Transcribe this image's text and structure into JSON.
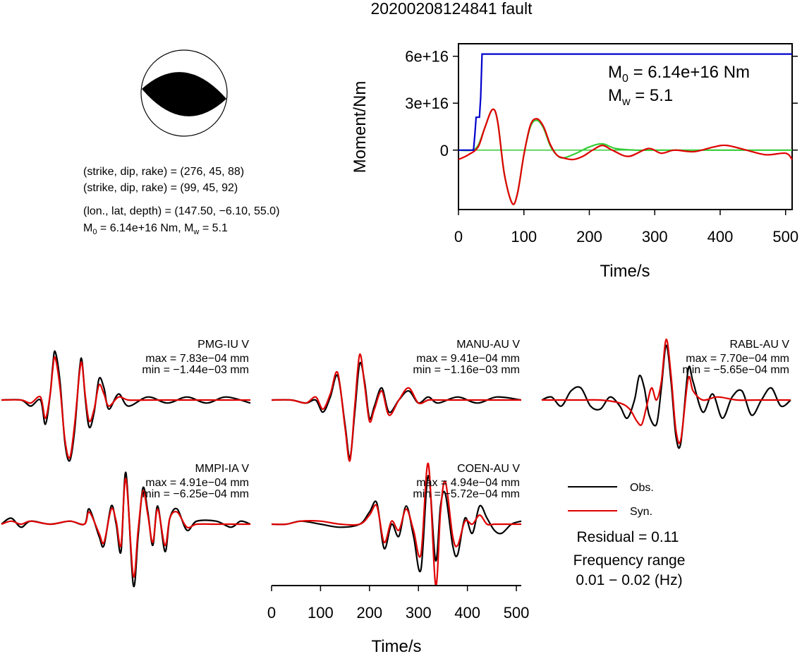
{
  "title": "20200208124841 fault",
  "mechanism": {
    "planes": [
      "(strike, dip, rake) = (276, 45, 88)",
      "(strike, dip, rake) = (99, 45, 92)"
    ],
    "location": "(lon., lat, depth) = (147.50, −6.10, 55.0)",
    "moment_line": {
      "m": "M",
      "sub": "0",
      "eq": " = 6.14e+16 Nm, M",
      "sub2": "w",
      "tail": " = 5.1"
    }
  },
  "moment_panel": {
    "ylabel": "Moment/Nm",
    "xlabel": "Time/s",
    "m0": {
      "m": "M",
      "sub": "0",
      "tail": " = 6.14e+16 Nm"
    },
    "mw": {
      "m": "M",
      "sub": "w",
      "tail": " = 5.1"
    },
    "yticks": [
      "0",
      "3e+16",
      "6e+16"
    ],
    "xticks": [
      "0",
      "100",
      "200",
      "300",
      "400",
      "500"
    ]
  },
  "waveforms": {
    "xlabel": "Time/s",
    "xticks": [
      "0",
      "100",
      "200",
      "300",
      "400",
      "500"
    ],
    "stations": [
      {
        "name": "PMG-IU V",
        "max": "max = 7.83e−04 mm",
        "min": "min = −1.44e−03 mm"
      },
      {
        "name": "MANU-AU V",
        "max": "max = 9.41e−04 mm",
        "min": "min = −1.16e−03 mm"
      },
      {
        "name": "RABL-AU V",
        "max": "max = 7.70e−04 mm",
        "min": "min = −5.65e−04 mm"
      },
      {
        "name": "MMPI-IA V",
        "max": "max = 4.91e−04 mm",
        "min": "min = −6.25e−04 mm"
      },
      {
        "name": "COEN-AU V",
        "max": "max = 4.94e−04 mm",
        "min": "min = −5.72e−04 mm"
      }
    ]
  },
  "legend": {
    "obs": "Obs.",
    "syn": "Syn."
  },
  "residual": "Residual = 0.11",
  "frequency": {
    "label": "Frequency range",
    "value": "0.01 − 0.02 (Hz)"
  },
  "colors": {
    "obs": "#000000",
    "syn": "#e00000",
    "stf_cumulative": "#0000cc",
    "stf_fit": "#33cc33"
  },
  "chart_data": [
    {
      "type": "line",
      "title": "",
      "xlabel": "Time/s",
      "ylabel": "Moment/Nm",
      "xlim": [
        0,
        510
      ],
      "ylim": [
        -3.8e+16,
        6.8e+16
      ],
      "series": [
        {
          "color": "#0000cc",
          "x": [
            0,
            23,
            25,
            27,
            32,
            34,
            36,
            510
          ],
          "y": [
            0,
            0,
            1e+16,
            2.1e+16,
            2.1e+16,
            3.4e+16,
            6.14e+16,
            6.14e+16
          ]
        },
        {
          "color": "#e00000",
          "x": [
            0,
            15,
            30,
            40,
            52,
            60,
            70,
            82,
            90,
            100,
            110,
            120,
            130,
            140,
            150,
            160,
            175,
            190,
            205,
            220,
            235,
            260,
            290,
            310,
            330,
            360,
            390,
            410,
            440,
            470,
            500,
            510
          ],
          "y": [
            -6000000000000000.0,
            -3000000000000000.0,
            2000000000000000.0,
            1.4e+16,
            2.6e+16,
            1.8e+16,
            -1.5e+16,
            -3.4e+16,
            -2.8e+16,
            -3000000000000000.0,
            1.6e+16,
            2e+16,
            1.5e+16,
            4000000000000000.0,
            -3000000000000000.0,
            -5000000000000000.0,
            -6000000000000000.0,
            -4000000000000000.0,
            0.0,
            3000000000000000.0,
            0.0,
            -4000000000000000.0,
            1000000000000000.0,
            -2000000000000000.0,
            0.0,
            -1000000000000000.0,
            2000000000000000.0,
            3000000000000000.0,
            0.0,
            -3000000000000000.0,
            -2000000000000000.0,
            -6000000000000000.0
          ]
        },
        {
          "color": "#33cc33",
          "x": [
            0,
            20,
            30,
            40,
            52,
            60,
            70,
            82,
            90,
            100,
            110,
            120,
            130,
            140,
            150,
            160,
            180,
            200,
            220,
            240,
            270,
            300,
            350,
            400,
            450,
            510
          ],
          "y": [
            0,
            0,
            3000000000000000.0,
            1.4e+16,
            2.6e+16,
            1.8e+16,
            -1.5e+16,
            -3.4e+16,
            -2.8e+16,
            -3000000000000000.0,
            1.5e+16,
            1.9e+16,
            1.4e+16,
            3000000000000000.0,
            -3000000000000000.0,
            -5000000000000000.0,
            -2000000000000000.0,
            2000000000000000.0,
            4000000000000000.0,
            1000000000000000.0,
            0,
            0,
            0,
            0,
            0,
            0
          ]
        }
      ]
    },
    {
      "type": "line",
      "title": "PMG-IU V",
      "xlim": [
        0,
        510
      ],
      "ylim": [
        -1,
        1
      ],
      "series": [
        {
          "color": "#000000",
          "x": [
            0,
            40,
            60,
            80,
            90,
            100,
            105,
            110,
            120,
            130,
            140,
            150,
            160,
            165,
            172,
            180,
            190,
            200,
            210,
            220,
            240,
            260,
            300,
            340,
            380,
            420,
            460,
            510
          ],
          "y": [
            0,
            0,
            -0.1,
            0.0,
            -0.4,
            0.1,
            0.55,
            0.8,
            0.3,
            -0.7,
            -1.0,
            -0.5,
            0.5,
            0.65,
            0.0,
            -0.45,
            -0.2,
            0.35,
            0.2,
            -0.15,
            0.1,
            -0.1,
            0.05,
            -0.05,
            0.05,
            -0.05,
            0.05,
            -0.05
          ]
        },
        {
          "color": "#e00000",
          "x": [
            0,
            40,
            60,
            80,
            90,
            100,
            105,
            110,
            120,
            130,
            140,
            150,
            160,
            165,
            172,
            180,
            190,
            200,
            210,
            220,
            240,
            260,
            300,
            340,
            380,
            420,
            460,
            510
          ],
          "y": [
            0,
            0,
            -0.05,
            0.05,
            -0.3,
            0.1,
            0.5,
            0.7,
            0.2,
            -0.65,
            -0.95,
            -0.4,
            0.45,
            0.6,
            0.05,
            -0.35,
            -0.15,
            0.25,
            0.1,
            -0.1,
            0.05,
            0.0,
            0.0,
            0.0,
            0.0,
            0.0,
            0.0,
            0.0
          ]
        }
      ]
    },
    {
      "type": "line",
      "title": "MANU-AU V",
      "xlim": [
        0,
        510
      ],
      "ylim": [
        -1,
        1
      ],
      "series": [
        {
          "color": "#000000",
          "x": [
            0,
            40,
            70,
            90,
            105,
            120,
            135,
            150,
            160,
            170,
            180,
            190,
            200,
            210,
            225,
            240,
            260,
            280,
            300,
            320,
            340,
            380,
            420,
            460,
            510
          ],
          "y": [
            0,
            0,
            -0.05,
            0.0,
            -0.2,
            0.05,
            0.4,
            -0.4,
            -0.95,
            -0.2,
            0.6,
            0.3,
            -0.3,
            -0.1,
            0.2,
            -0.2,
            0.0,
            0.15,
            -0.05,
            0.05,
            -0.05,
            0.05,
            -0.05,
            0.05,
            0.0
          ]
        },
        {
          "color": "#e00000",
          "x": [
            0,
            40,
            70,
            90,
            105,
            120,
            135,
            150,
            160,
            170,
            180,
            190,
            200,
            210,
            225,
            240,
            260,
            280,
            300,
            320,
            340,
            380,
            420,
            460,
            510
          ],
          "y": [
            0,
            0,
            -0.05,
            0.05,
            -0.15,
            0.1,
            0.45,
            -0.45,
            -1.0,
            -0.1,
            0.75,
            0.25,
            -0.35,
            -0.15,
            0.15,
            -0.25,
            0.0,
            0.2,
            -0.05,
            0.0,
            0.0,
            0.0,
            0.0,
            0.0,
            0.0
          ]
        }
      ]
    },
    {
      "type": "line",
      "title": "RABL-AU V",
      "xlim": [
        0,
        510
      ],
      "ylim": [
        -1,
        1
      ],
      "series": [
        {
          "color": "#000000",
          "x": [
            0,
            20,
            40,
            60,
            80,
            100,
            120,
            140,
            160,
            175,
            190,
            200,
            210,
            220,
            235,
            245,
            255,
            265,
            275,
            285,
            300,
            310,
            330,
            350,
            370,
            390,
            410,
            430,
            450,
            470,
            490,
            510
          ],
          "y": [
            0,
            0.05,
            -0.1,
            0.15,
            0.2,
            -0.1,
            -0.15,
            0.05,
            -0.1,
            -0.3,
            0.0,
            0.4,
            0.2,
            -0.25,
            -0.4,
            0.2,
            0.9,
            0.3,
            -0.6,
            -0.7,
            0.5,
            0.3,
            -0.2,
            0.1,
            -0.3,
            0.05,
            0.15,
            -0.25,
            0.0,
            0.2,
            -0.1,
            0.0
          ]
        },
        {
          "color": "#e00000",
          "x": [
            0,
            40,
            80,
            120,
            160,
            180,
            195,
            205,
            215,
            225,
            235,
            245,
            255,
            265,
            275,
            285,
            300,
            310,
            330,
            360,
            400,
            440,
            480,
            510
          ],
          "y": [
            0,
            0,
            0.0,
            0.0,
            -0.05,
            -0.15,
            -0.35,
            -0.4,
            -0.1,
            0.2,
            0.0,
            0.3,
            1.0,
            0.4,
            -0.5,
            -0.65,
            0.35,
            0.15,
            0.0,
            0.05,
            0.0,
            0.0,
            0.0,
            0.0
          ]
        }
      ]
    },
    {
      "type": "line",
      "title": "MMPI-IA V",
      "xlim": [
        0,
        510
      ],
      "ylim": [
        -1,
        1
      ],
      "series": [
        {
          "color": "#000000",
          "x": [
            0,
            20,
            40,
            60,
            100,
            140,
            170,
            180,
            200,
            210,
            225,
            235,
            245,
            255,
            270,
            280,
            290,
            300,
            310,
            320,
            335,
            345,
            360,
            380,
            400,
            440,
            470,
            490,
            510
          ],
          "y": [
            0,
            0.1,
            -0.05,
            0.05,
            0.0,
            0.05,
            0.0,
            0.25,
            -0.2,
            -0.35,
            0.3,
            0.0,
            -0.45,
            0.85,
            -1.0,
            -0.2,
            0.6,
            0.2,
            -0.35,
            0.3,
            -0.45,
            0.1,
            0.25,
            -0.1,
            0.05,
            0.05,
            -0.05,
            0.05,
            0.0
          ]
        },
        {
          "color": "#e00000",
          "x": [
            0,
            20,
            40,
            60,
            100,
            140,
            170,
            180,
            200,
            210,
            225,
            235,
            245,
            255,
            270,
            280,
            290,
            300,
            310,
            320,
            335,
            345,
            360,
            380,
            400,
            440,
            470,
            490,
            510
          ],
          "y": [
            0,
            0.05,
            0.0,
            0.05,
            0.0,
            0.05,
            0.0,
            0.2,
            -0.15,
            -0.3,
            0.25,
            0.05,
            -0.35,
            0.75,
            -0.85,
            -0.1,
            0.55,
            0.15,
            -0.3,
            0.25,
            -0.35,
            0.1,
            0.2,
            -0.05,
            0.0,
            0.0,
            0.0,
            0.0,
            0.0
          ]
        }
      ]
    },
    {
      "type": "line",
      "title": "COEN-AU V",
      "xlim": [
        0,
        510
      ],
      "ylim": [
        -1,
        1
      ],
      "series": [
        {
          "color": "#000000",
          "x": [
            0,
            30,
            60,
            100,
            140,
            180,
            200,
            215,
            230,
            245,
            260,
            275,
            290,
            305,
            320,
            335,
            345,
            355,
            370,
            380,
            395,
            410,
            425,
            440,
            455,
            470,
            490,
            510
          ],
          "y": [
            0,
            0.0,
            0.05,
            0.0,
            -0.05,
            0.0,
            0.2,
            0.35,
            -0.4,
            0.0,
            -0.2,
            0.3,
            -0.2,
            -0.75,
            0.8,
            -0.6,
            0.3,
            0.5,
            -0.35,
            -0.5,
            0.1,
            -0.15,
            0.3,
            0.1,
            -0.1,
            -0.15,
            0.0,
            0.05
          ]
        },
        {
          "color": "#e00000",
          "x": [
            0,
            30,
            60,
            100,
            140,
            180,
            200,
            215,
            230,
            245,
            260,
            275,
            290,
            305,
            320,
            335,
            345,
            355,
            370,
            380,
            395,
            410,
            425,
            440,
            455,
            470,
            490,
            510
          ],
          "y": [
            0,
            0.0,
            0.05,
            0.05,
            0.0,
            0.0,
            0.15,
            0.3,
            -0.3,
            0.05,
            -0.1,
            0.25,
            -0.1,
            -0.5,
            1.0,
            -1.0,
            0.2,
            0.7,
            -0.2,
            -0.35,
            0.05,
            0.0,
            0.15,
            0.0,
            0.0,
            0.0,
            0.0,
            0.0
          ]
        }
      ]
    }
  ]
}
